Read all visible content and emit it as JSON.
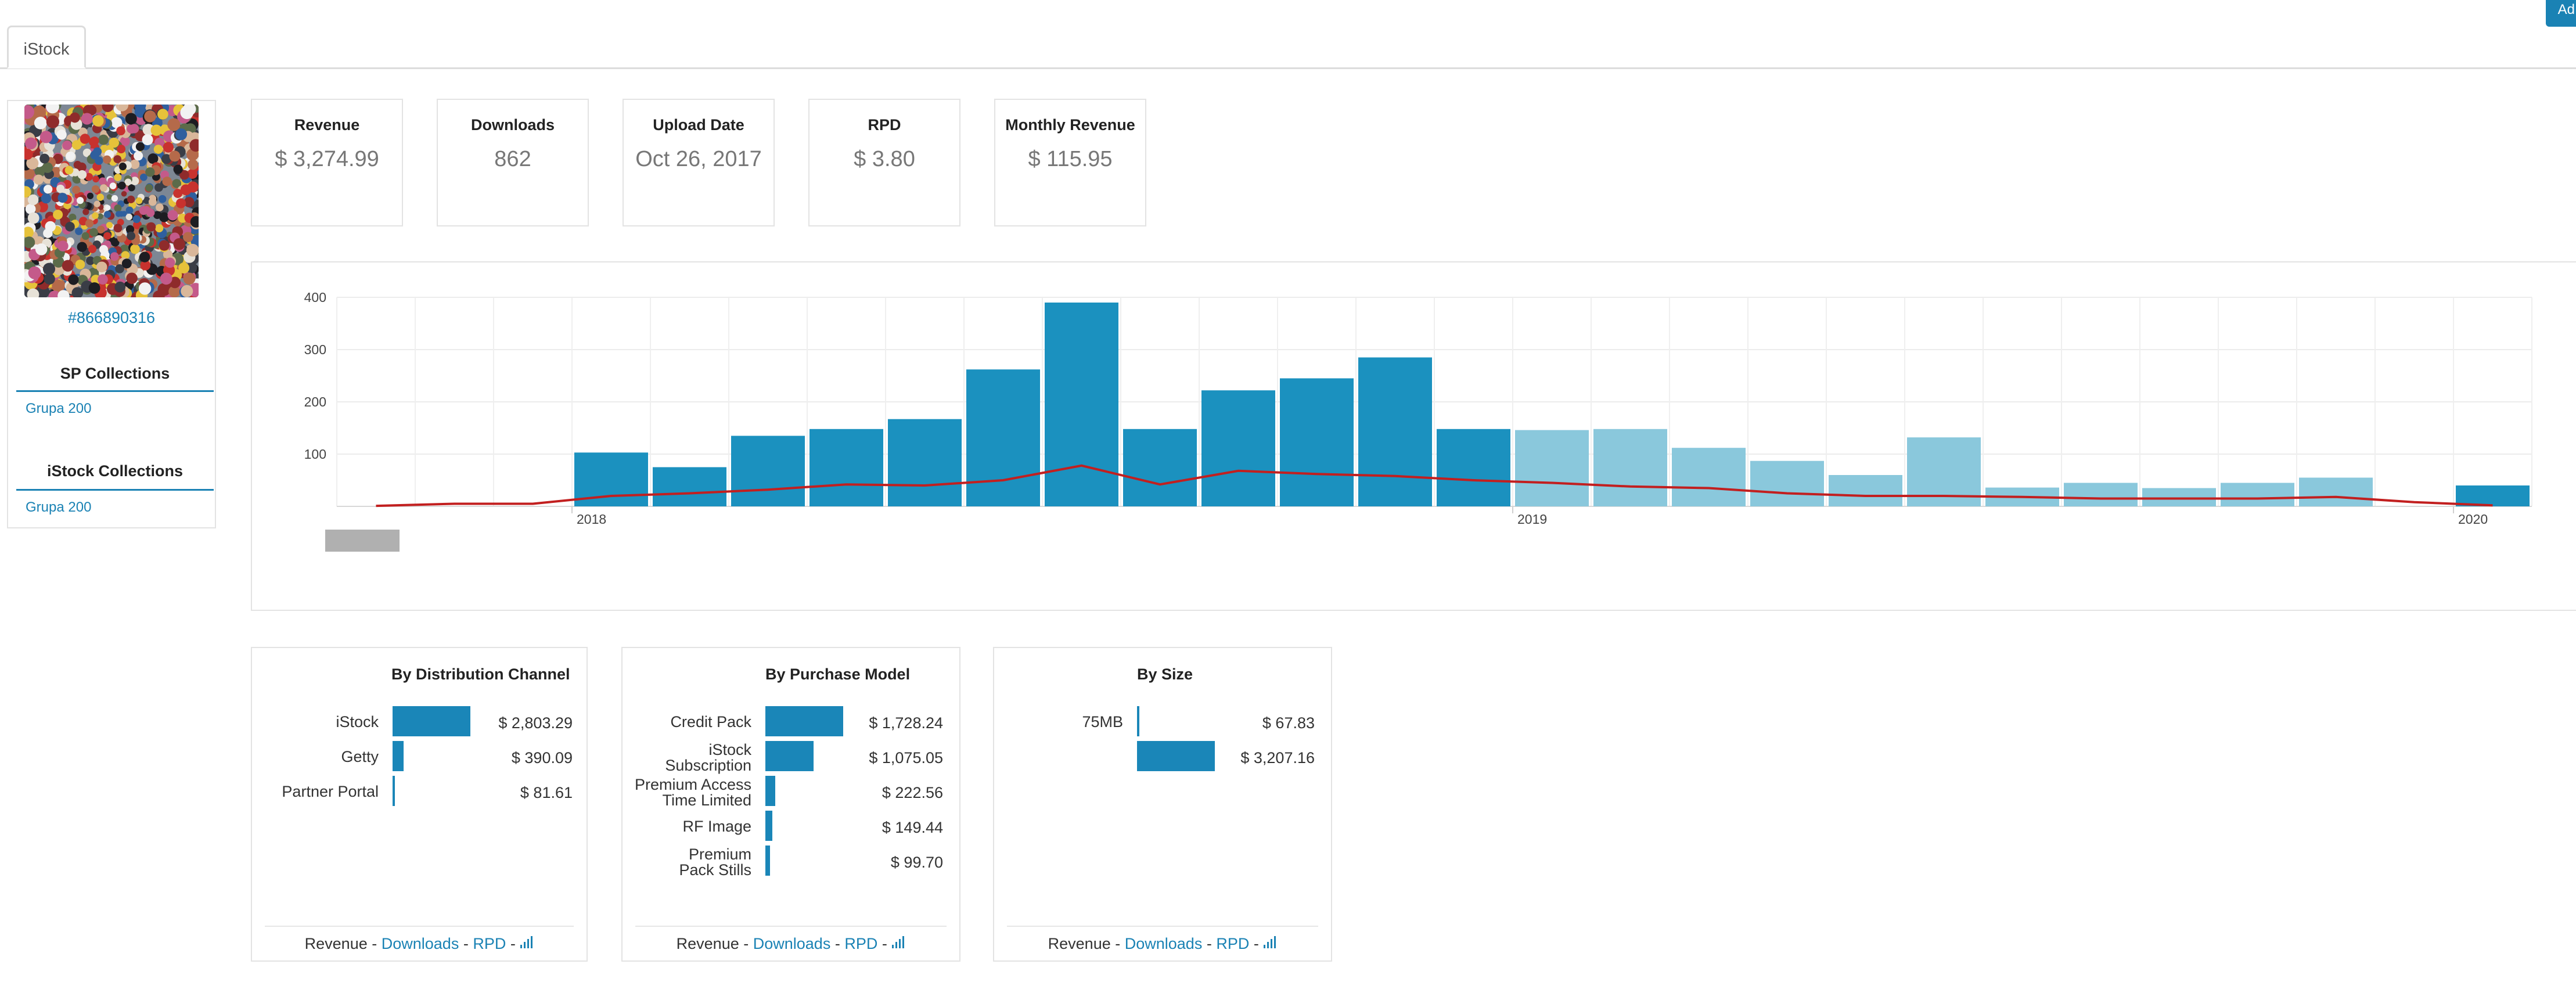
{
  "header": {
    "corner_button_label": "Ad",
    "tab_label": "iStock"
  },
  "asset": {
    "id": "#866890316"
  },
  "collections": [
    {
      "title": "SP Collections",
      "items": [
        "Grupa 200"
      ]
    },
    {
      "title": "iStock Collections",
      "items": [
        "Grupa 200"
      ]
    }
  ],
  "stats": [
    {
      "label": "Revenue",
      "value": "$ 3,274.99"
    },
    {
      "label": "Downloads",
      "value": "862"
    },
    {
      "label": "Upload Date",
      "value": "Oct 26, 2017"
    },
    {
      "label": "RPD",
      "value": "$ 3.80"
    },
    {
      "label": "Monthly Revenue",
      "value": "$ 115.95"
    }
  ],
  "chart_data": {
    "type": "bar",
    "y_ticks": [
      100,
      200,
      300,
      400
    ],
    "ylim": [
      0,
      400
    ],
    "x_tick_labels": [
      {
        "label": "2018",
        "month_index": 3
      },
      {
        "label": "2019",
        "month_index": 15
      },
      {
        "label": "2020",
        "month_index": 27
      }
    ],
    "months": 28,
    "series": [
      {
        "values": [
          0,
          0,
          0,
          103,
          75,
          135,
          148,
          167,
          262,
          390,
          148,
          222,
          245,
          285,
          148,
          146,
          148,
          112,
          87,
          60,
          132,
          36,
          45,
          35,
          45,
          55,
          0,
          40
        ]
      },
      {
        "values": [
          1,
          5,
          5,
          20,
          25,
          32,
          42,
          40,
          50,
          78,
          42,
          68,
          62,
          58,
          50,
          45,
          38,
          35,
          25,
          20,
          20,
          18,
          15,
          15,
          15,
          18,
          8,
          2
        ]
      }
    ],
    "light_from_index": 15,
    "colors": {
      "bar": "#1b91bf",
      "bar_light": "#8ac8dc",
      "line": "#c21f1f"
    },
    "grid": true
  },
  "breakdowns": [
    {
      "title": "By Distribution Channel",
      "rows": [
        {
          "label": [
            "iStock"
          ],
          "value": "$ 2,803.29",
          "amount": 2803.29
        },
        {
          "label": [
            "Getty"
          ],
          "value": "$ 390.09",
          "amount": 390.09
        },
        {
          "label": [
            "Partner Portal"
          ],
          "value": "$ 81.61",
          "amount": 81.61
        }
      ]
    },
    {
      "title": "By Purchase Model",
      "rows": [
        {
          "label": [
            "Credit Pack"
          ],
          "value": "$ 1,728.24",
          "amount": 1728.24
        },
        {
          "label": [
            "iStock",
            "Subscription"
          ],
          "value": "$ 1,075.05",
          "amount": 1075.05
        },
        {
          "label": [
            "Premium Access",
            "Time Limited"
          ],
          "value": "$ 222.56",
          "amount": 222.56
        },
        {
          "label": [
            "RF Image"
          ],
          "value": "$ 149.44",
          "amount": 149.44
        },
        {
          "label": [
            "Premium",
            "Pack Stills"
          ],
          "value": "$ 99.70",
          "amount": 99.7
        }
      ]
    },
    {
      "title": "By Size",
      "rows": [
        {
          "label": [
            "75MB"
          ],
          "value": "$ 67.83",
          "amount": 67.83
        },
        {
          "label": [
            ""
          ],
          "value": "$ 3,207.16",
          "amount": 3207.16
        }
      ]
    }
  ],
  "footer_links": {
    "revenue": "Revenue",
    "sep": " - ",
    "downloads": "Downloads",
    "rpd": "RPD",
    "chart_icon": "bar-chart-icon"
  }
}
